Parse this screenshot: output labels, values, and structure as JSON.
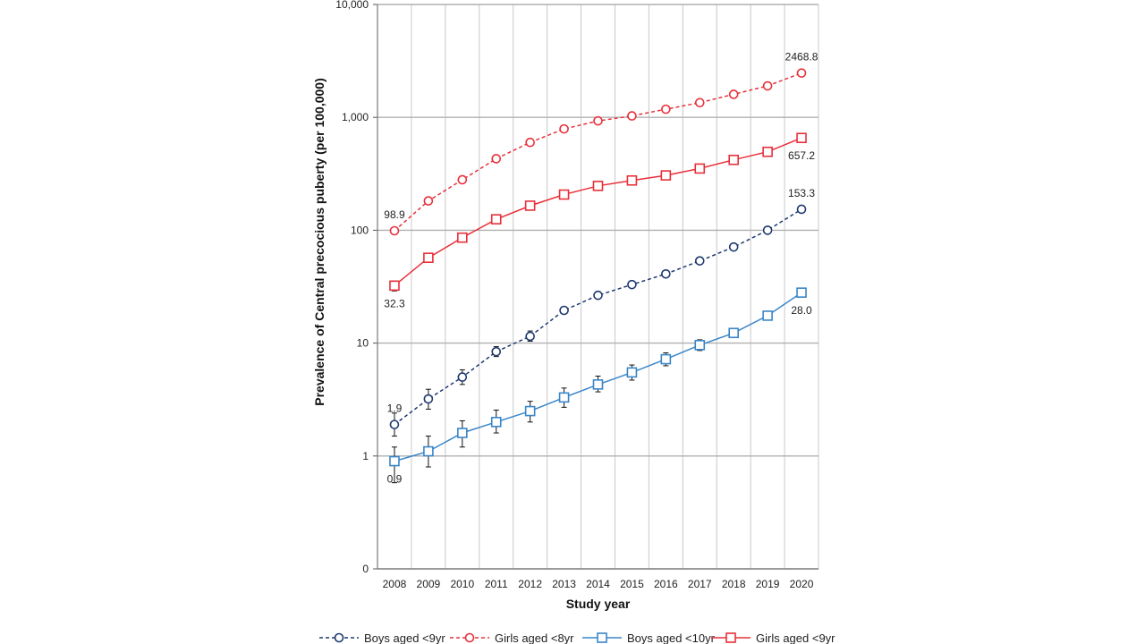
{
  "chart_data": {
    "type": "line",
    "title": "",
    "xlabel": "Study year",
    "ylabel": "Prevalence of Central precocious puberty (per 100,000)",
    "yscale": "log",
    "ylim": [
      0.1,
      10000
    ],
    "x": [
      2008,
      2009,
      2010,
      2011,
      2012,
      2013,
      2014,
      2015,
      2016,
      2017,
      2018,
      2019,
      2020
    ],
    "x_tick_labels": [
      "2008",
      "2009",
      "2010",
      "2011",
      "2012",
      "2013",
      "2014",
      "2015",
      "2016",
      "2017",
      "2018",
      "2019",
      "2020"
    ],
    "y_ticks": [
      {
        "value": 0.1,
        "label": "0"
      },
      {
        "value": 1,
        "label": "1"
      },
      {
        "value": 10,
        "label": "10"
      },
      {
        "value": 100,
        "label": "100"
      },
      {
        "value": 1000,
        "label": "1,000"
      },
      {
        "value": 10000,
        "label": "10,000"
      }
    ],
    "grid": true,
    "legend_position": "bottom",
    "series": [
      {
        "name": "Boys aged <9yr",
        "color": "#1f3a6e",
        "dash": true,
        "marker": "circle",
        "values": [
          1.9,
          3.2,
          5.0,
          8.4,
          11.5,
          19.5,
          26.5,
          33.0,
          41.0,
          53.5,
          71.0,
          100.0,
          153.3
        ],
        "err_low": [
          1.5,
          2.6,
          4.3,
          7.6,
          10.4,
          18.3,
          25.0,
          31.5,
          39.0,
          51.5,
          68.5,
          97.0,
          148.0
        ],
        "err_high": [
          2.4,
          3.9,
          5.8,
          9.3,
          12.8,
          20.8,
          28.0,
          34.5,
          43.0,
          55.5,
          73.5,
          103.0,
          158.0
        ]
      },
      {
        "name": "Girls aged <8yr",
        "color": "#e8303a",
        "dash": true,
        "marker": "circle",
        "values": [
          98.9,
          182.0,
          280.0,
          430.0,
          600.0,
          790.0,
          930.0,
          1030.0,
          1180.0,
          1350.0,
          1600.0,
          1900.0,
          2468.8
        ],
        "err_low": [
          95.0,
          176.0,
          272.0,
          420.0,
          588.0,
          776.0,
          915.0,
          1015.0,
          1162.0,
          1330.0,
          1578.0,
          1876.0,
          2440.0
        ],
        "err_high": [
          103.0,
          188.0,
          288.0,
          440.0,
          612.0,
          804.0,
          945.0,
          1045.0,
          1198.0,
          1370.0,
          1622.0,
          1924.0,
          2497.0
        ]
      },
      {
        "name": "Boys aged <10yr",
        "color": "#3a86c8",
        "dash": false,
        "marker": "square",
        "values": [
          0.9,
          1.1,
          1.6,
          2.0,
          2.5,
          3.3,
          4.3,
          5.5,
          7.2,
          9.6,
          12.3,
          17.5,
          28.0
        ],
        "err_low": [
          0.58,
          0.8,
          1.2,
          1.6,
          2.0,
          2.7,
          3.7,
          4.7,
          6.3,
          8.6,
          11.2,
          16.5,
          26.8
        ],
        "err_high": [
          1.2,
          1.5,
          2.05,
          2.55,
          3.05,
          4.0,
          5.1,
          6.4,
          8.2,
          10.7,
          13.5,
          18.7,
          29.3
        ]
      },
      {
        "name": "Girls aged <9yr",
        "color": "#e8303a",
        "dash": false,
        "marker": "square",
        "values": [
          32.3,
          57.0,
          86.0,
          125.0,
          165.0,
          207.0,
          247.0,
          276.0,
          306.0,
          352.0,
          420.0,
          495.0,
          657.2
        ],
        "err_low": [
          29.0,
          53.0,
          81.0,
          118.0,
          158.0,
          200.0,
          240.0,
          269.0,
          298.0,
          344.0,
          411.0,
          485.0,
          645.0
        ],
        "err_high": [
          35.5,
          61.0,
          91.0,
          132.0,
          172.0,
          214.0,
          254.0,
          283.0,
          314.0,
          360.0,
          429.0,
          505.0,
          670.0
        ]
      }
    ],
    "annotations": [
      {
        "series": 1,
        "index": 0,
        "text": "98.9",
        "pos": "above"
      },
      {
        "series": 1,
        "index": 12,
        "text": "2468.8",
        "pos": "above"
      },
      {
        "series": 3,
        "index": 0,
        "text": "32.3",
        "pos": "below"
      },
      {
        "series": 3,
        "index": 12,
        "text": "657.2",
        "pos": "below"
      },
      {
        "series": 0,
        "index": 0,
        "text": "1.9",
        "pos": "above"
      },
      {
        "series": 0,
        "index": 12,
        "text": "153.3",
        "pos": "above"
      },
      {
        "series": 2,
        "index": 0,
        "text": "0.9",
        "pos": "below"
      },
      {
        "series": 2,
        "index": 12,
        "text": "28.0",
        "pos": "below"
      }
    ]
  }
}
